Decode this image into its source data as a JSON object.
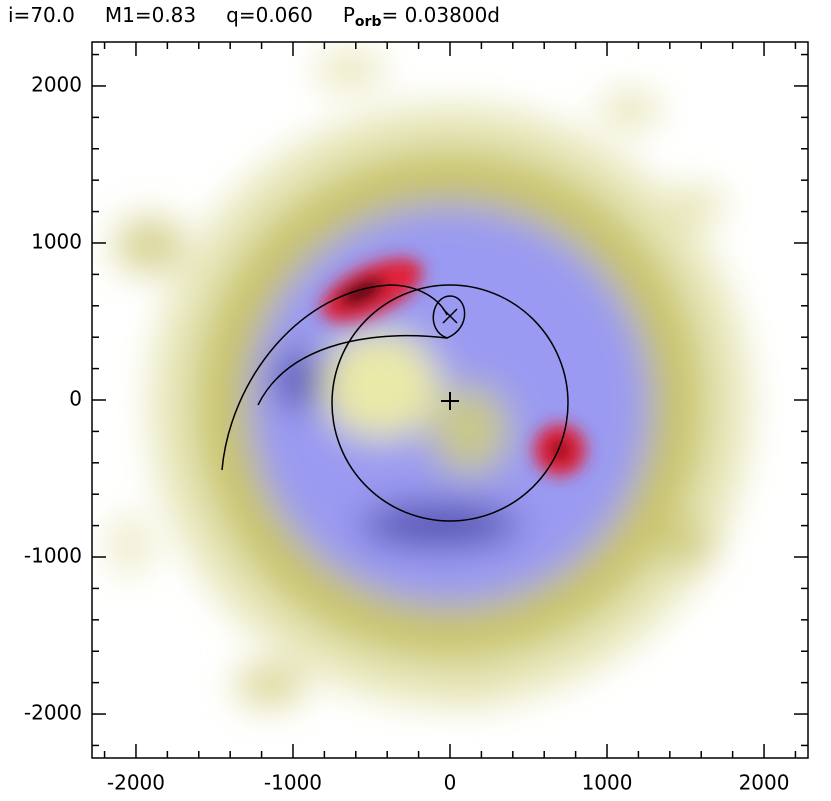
{
  "chart_data": {
    "type": "doppler_map",
    "title_params": [
      "i=70.0",
      "M1=0.83",
      "q=0.060"
    ],
    "period_symbol": "P",
    "period_subscript": "orb",
    "period_value": "= 0.03800d",
    "xlim": [
      -2280,
      2280
    ],
    "ylim": [
      -2280,
      2280
    ],
    "xticks": [
      -2000,
      -1000,
      0,
      1000,
      2000
    ],
    "yticks": [
      -2000,
      -1000,
      0,
      1000,
      2000
    ],
    "xminorticks": [
      -2200,
      -1800,
      -1600,
      -1400,
      -1200,
      -800,
      -600,
      -400,
      -200,
      200,
      400,
      600,
      800,
      1200,
      1400,
      1600,
      1800,
      2200
    ],
    "yminorticks": [
      -2200,
      -1800,
      -1600,
      -1400,
      -1200,
      -800,
      -600,
      -400,
      -200,
      200,
      400,
      600,
      800,
      1200,
      1400,
      1600,
      1800,
      2200
    ]
  }
}
